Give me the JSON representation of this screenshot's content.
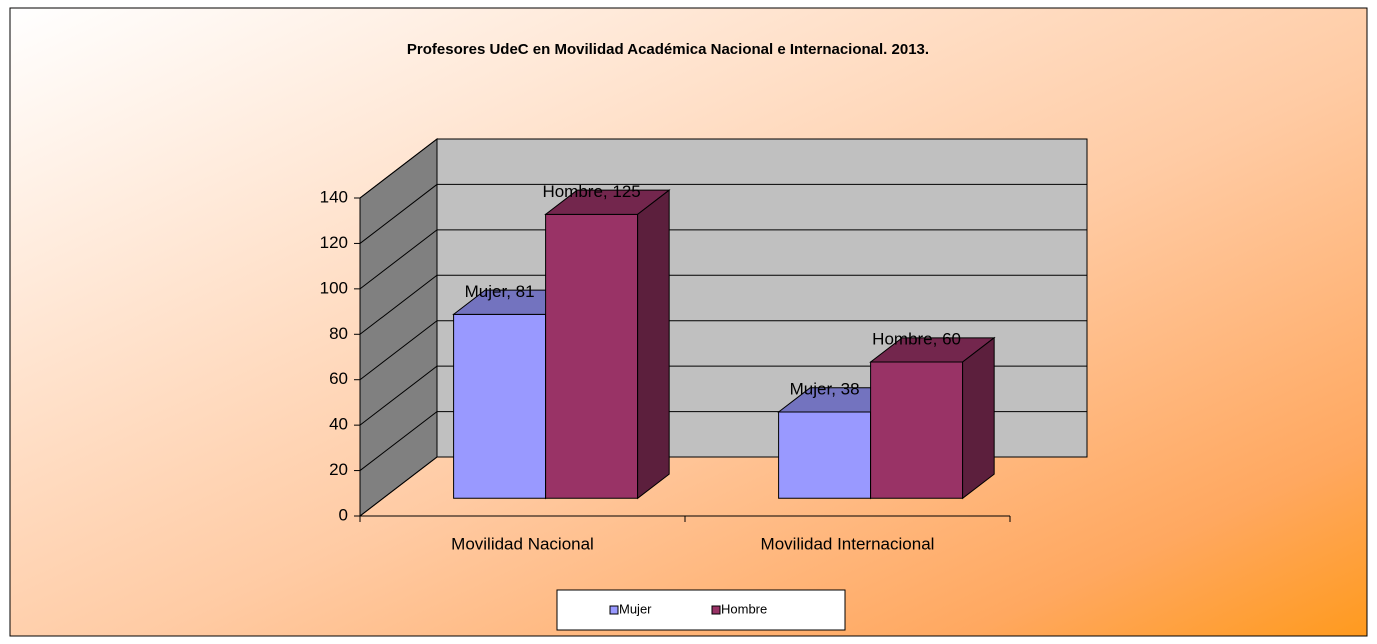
{
  "chart_data": {
    "type": "bar3d",
    "title": "Profesores UdeC en Movilidad  Académica Nacional e Internacional. 2013.",
    "categories": [
      "Movilidad Nacional",
      "Movilidad Internacional"
    ],
    "series": [
      {
        "name": "Mujer",
        "color": "#9999ff",
        "values": [
          81,
          38
        ],
        "value_labels": [
          "Mujer, 81",
          "Mujer, 38"
        ]
      },
      {
        "name": "Hombre",
        "color": "#993366",
        "values": [
          125,
          60
        ],
        "value_labels": [
          "Hombre, 125",
          "Hombre, 60"
        ]
      }
    ],
    "ylim": [
      0,
      140
    ],
    "yticks": [
      0,
      20,
      40,
      60,
      80,
      100,
      120,
      140
    ],
    "grid": true,
    "legend": "bottom"
  }
}
